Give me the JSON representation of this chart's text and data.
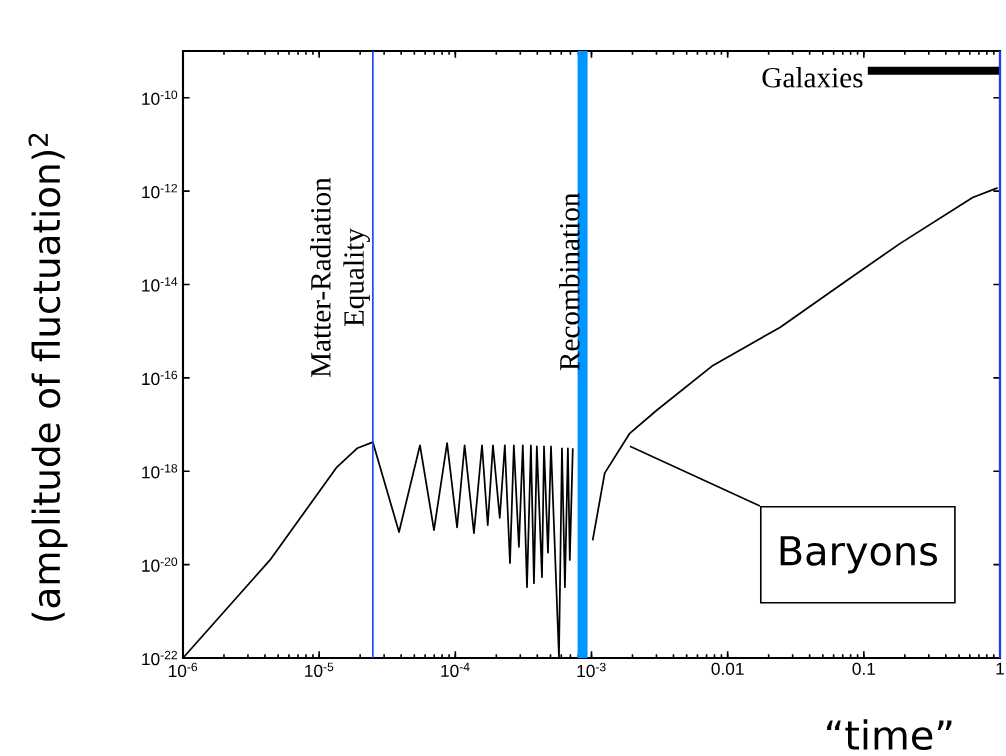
{
  "chart_data": {
    "type": "line",
    "xlabel": "“time”",
    "ylabel": "(amplitude of fluctuation)$^{2}$",
    "log": "xy",
    "xlim": [
      1e-06,
      1
    ],
    "ylim": [
      1e-22,
      1e-09
    ],
    "xticks": [
      {
        "value": 1e-06,
        "label": "10$^{-6}$"
      },
      {
        "value": 1e-05,
        "label": "10$^{-5}$"
      },
      {
        "value": 0.0001,
        "label": "10$^{-4}$"
      },
      {
        "value": 0.001,
        "label": "10$^{-3}$"
      },
      0.01,
      0.1,
      1
    ],
    "yticks": [
      {
        "value": 1e-22,
        "label": "10$^{-22}$"
      },
      {
        "value": 1e-20,
        "label": "10$^{-20}$"
      },
      {
        "value": 1e-18,
        "label": "10$^{-18}$"
      },
      {
        "value": 1e-16,
        "label": "10$^{-16}$"
      },
      {
        "value": 1e-14,
        "label": "10$^{-14}$"
      },
      {
        "value": 1e-12,
        "label": "10$^{-12}$"
      },
      {
        "value": 1e-10,
        "label": "10$^{-10}$"
      }
    ],
    "series": [
      {
        "color": "#000000",
        "x": [
          1e-06,
          4.36e-06,
          1.35e-05,
          1.9e-05,
          2.48e-05,
          3.86e-05,
          5.5e-05,
          6.97e-05,
          8.7e-05,
          0.000103,
          0.000117,
          0.000137,
          0.000157,
          0.000173,
          0.000189,
          0.000212,
          0.000231,
          0.000252,
          0.000269,
          0.000293,
          0.000313,
          0.000336,
          0.000359,
          0.000378,
          0.000397,
          0.000433,
          0.000448,
          0.000479,
          0.000504,
          0.000577,
          0.000607,
          0.000638,
          0.000671,
          0.000693,
          0.000729
        ],
        "values": [
          1e-22,
          1.26e-20,
          1.23e-18,
          3.1e-18,
          4.2e-18,
          5e-20,
          3.6e-18,
          5.5e-20,
          4e-18,
          6.3e-20,
          3.6e-18,
          4.7e-20,
          3.6e-18,
          7e-20,
          3.6e-18,
          1e-19,
          3.6e-18,
          1.07e-20,
          3.6e-18,
          2.4e-20,
          3.6e-18,
          3.3e-21,
          3.6e-18,
          4e-21,
          3.4e-18,
          5.4e-21,
          3.4e-18,
          1.8e-20,
          3.4e-18,
          1.05e-22,
          3.1e-18,
          3.3e-21,
          3.1e-18,
          1.26e-20,
          3.1e-18
        ]
      },
      {
        "color": "#000000",
        "x": [
          0.00102,
          0.00125,
          0.00191,
          0.003,
          0.0078,
          0.0242,
          0.075,
          0.184,
          0.63,
          0.96
        ],
        "values": [
          3.3e-20,
          9.1e-19,
          6.5e-18,
          2e-17,
          1.85e-16,
          1.2e-15,
          1.22e-14,
          7.5e-14,
          7.3e-13,
          1.17e-12
        ]
      },
      {
        "name": "Galaxies",
        "color": "#000000",
        "x": [
          0.107,
          1
        ],
        "values": [
          3.8e-10,
          3.8e-10
        ]
      }
    ],
    "ref_lines": [
      {
        "axis": "x",
        "value": 2.48e-05,
        "label": "Matter-Radiation Equality",
        "color": "#1a3cff"
      },
      {
        "axis": "x",
        "value": 0.00086,
        "label": "Recombination",
        "color": "#0096ff"
      },
      {
        "axis": "x",
        "value": 1,
        "color": "#1a3cff"
      }
    ],
    "annotations": [
      "Baryons"
    ]
  }
}
